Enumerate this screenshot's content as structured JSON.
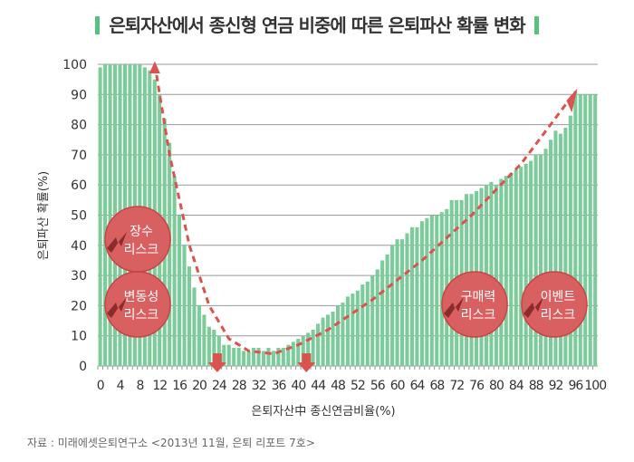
{
  "chart_data": {
    "type": "bar",
    "title": "은퇴자산에서 종신형 연금 비중에 따른 은퇴파산 확률 변화",
    "xlabel": "은퇴자산中 종신연금비율(%)",
    "ylabel": "은퇴파산 확률(%)",
    "ylim": [
      0,
      100
    ],
    "yticks": [
      0,
      10,
      20,
      30,
      40,
      50,
      60,
      70,
      80,
      90,
      100
    ],
    "xticks": [
      0,
      4,
      8,
      12,
      16,
      20,
      24,
      28,
      32,
      36,
      40,
      44,
      48,
      52,
      56,
      60,
      64,
      68,
      72,
      76,
      80,
      84,
      88,
      92,
      96,
      100
    ],
    "x_start": 0,
    "values": [
      99,
      100,
      100,
      100,
      100,
      100,
      100,
      100,
      100,
      99,
      98,
      95,
      90,
      82,
      74,
      63,
      50,
      40,
      33,
      26,
      20,
      17,
      13,
      12,
      10,
      7,
      7,
      6,
      6,
      5,
      5,
      6,
      6,
      5,
      6,
      5,
      6,
      6,
      7,
      8,
      9,
      10,
      11,
      12,
      14,
      16,
      17,
      18,
      20,
      21,
      23,
      24,
      25,
      27,
      28,
      30,
      32,
      35,
      37,
      40,
      42,
      42,
      44,
      46,
      46,
      48,
      49,
      50,
      50,
      51,
      52,
      55,
      55,
      55,
      57,
      57,
      58,
      59,
      60,
      61,
      60,
      62,
      63,
      64,
      65,
      66,
      67,
      68,
      70,
      70,
      72,
      75,
      78,
      77,
      79,
      83,
      91,
      90,
      90,
      90,
      90
    ],
    "grid": true,
    "annotations": [
      {
        "label1": "장수",
        "label2": "리스크"
      },
      {
        "label1": "변동성",
        "label2": "리스크"
      },
      {
        "label1": "구매력",
        "label2": "리스크"
      },
      {
        "label1": "이벤트",
        "label2": "리스크"
      }
    ],
    "colors": {
      "bar": "#7ccb9a",
      "accent": "#d9534f",
      "circle": "#d96060"
    }
  },
  "source": "자료 : 미래에셋은퇴연구소 <2013년 11월, 은퇴 리포트 7호>"
}
